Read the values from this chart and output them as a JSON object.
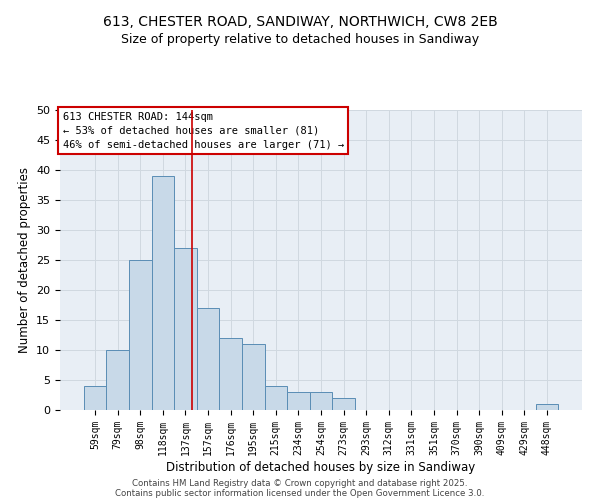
{
  "title": "613, CHESTER ROAD, SANDIWAY, NORTHWICH, CW8 2EB",
  "subtitle": "Size of property relative to detached houses in Sandiway",
  "xlabel": "Distribution of detached houses by size in Sandiway",
  "ylabel": "Number of detached properties",
  "bin_labels": [
    "59sqm",
    "79sqm",
    "98sqm",
    "118sqm",
    "137sqm",
    "157sqm",
    "176sqm",
    "195sqm",
    "215sqm",
    "234sqm",
    "254sqm",
    "273sqm",
    "293sqm",
    "312sqm",
    "331sqm",
    "351sqm",
    "370sqm",
    "390sqm",
    "409sqm",
    "429sqm",
    "448sqm"
  ],
  "bar_heights": [
    4,
    10,
    25,
    39,
    27,
    17,
    12,
    11,
    4,
    3,
    3,
    2,
    0,
    0,
    0,
    0,
    0,
    0,
    0,
    0,
    1
  ],
  "bar_color": "#c8d9e8",
  "bar_edge_color": "#5a8db5",
  "vline_x": 4.3,
  "vline_color": "#cc0000",
  "annotation_text": "613 CHESTER ROAD: 144sqm\n← 53% of detached houses are smaller (81)\n46% of semi-detached houses are larger (71) →",
  "annotation_box_color": "#ffffff",
  "annotation_box_edge": "#cc0000",
  "annotation_fontsize": 7.5,
  "ylim": [
    0,
    50
  ],
  "yticks": [
    0,
    5,
    10,
    15,
    20,
    25,
    30,
    35,
    40,
    45,
    50
  ],
  "grid_color": "#d0d8e0",
  "bg_color": "#e8eef5",
  "footer_line1": "Contains HM Land Registry data © Crown copyright and database right 2025.",
  "footer_line2": "Contains public sector information licensed under the Open Government Licence 3.0.",
  "title_fontsize": 10,
  "subtitle_fontsize": 9,
  "xlabel_fontsize": 8.5,
  "ylabel_fontsize": 8.5
}
